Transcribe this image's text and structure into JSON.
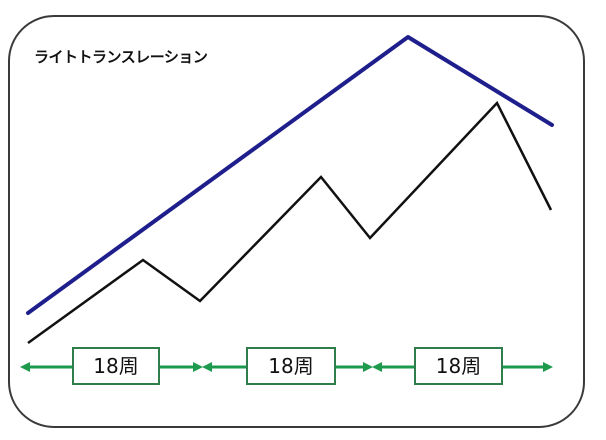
{
  "diagram": {
    "title": "ライトトランスレーション",
    "colors": {
      "upper_line": "#1e1e8c",
      "price_line": "#111111",
      "arrow": "#1e9a4e",
      "label_border": "#2e7d4a",
      "frame_border": "#3a3a3a"
    },
    "periods": [
      {
        "label": "18周"
      },
      {
        "label": "18周"
      },
      {
        "label": "18周"
      }
    ]
  }
}
